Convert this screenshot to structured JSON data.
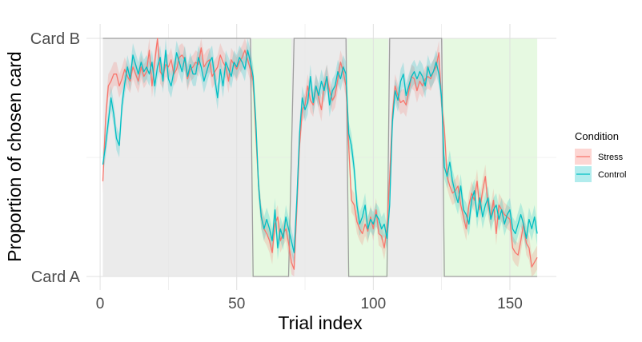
{
  "chart_data": {
    "type": "line",
    "xlabel": "Trial index",
    "ylabel": "Proportion of chosen card",
    "xlim": [
      -5,
      167
    ],
    "ylim": [
      0,
      1
    ],
    "x_ticks": [
      0,
      50,
      100,
      150
    ],
    "y_ticks": [
      {
        "value": 0,
        "label": "Card A"
      },
      {
        "value": 1,
        "label": "Card B"
      }
    ],
    "grid": true,
    "legend": {
      "title": "Condition",
      "position": "right"
    },
    "colors": {
      "stress": "#F8766D",
      "control": "#00BFC4",
      "target_line": "#9e9e9e",
      "phase_b_fill": "#ebebeb",
      "phase_a_fill": "#e6f9e1"
    },
    "target": {
      "description_points": [
        [
          1,
          1
        ],
        [
          55,
          1
        ],
        [
          56,
          0
        ],
        [
          69,
          0
        ],
        [
          71,
          1
        ],
        [
          90,
          1
        ],
        [
          91,
          0
        ],
        [
          105,
          0
        ],
        [
          106,
          1
        ],
        [
          125,
          1
        ],
        [
          126,
          0
        ],
        [
          160,
          0
        ]
      ],
      "phases": [
        {
          "start": 1,
          "end": 55.5,
          "value": 1
        },
        {
          "start": 55.5,
          "end": 70,
          "value": 0
        },
        {
          "start": 70,
          "end": 90.5,
          "value": 1
        },
        {
          "start": 90.5,
          "end": 105.5,
          "value": 0
        },
        {
          "start": 105.5,
          "end": 125.5,
          "value": 1
        },
        {
          "start": 125.5,
          "end": 160,
          "value": 0
        }
      ]
    },
    "series": [
      {
        "name": "Stress",
        "color": "#F8766D",
        "band": 0.05,
        "x_start": 1,
        "values": [
          0.4,
          0.66,
          0.8,
          0.82,
          0.85,
          0.85,
          0.8,
          0.83,
          0.87,
          0.84,
          0.82,
          0.88,
          0.85,
          0.82,
          0.88,
          0.84,
          0.86,
          0.95,
          0.8,
          0.9,
          1.0,
          0.86,
          0.84,
          0.89,
          0.88,
          0.91,
          0.85,
          0.87,
          0.92,
          0.93,
          0.91,
          0.83,
          0.87,
          0.88,
          0.9,
          0.89,
          0.96,
          0.88,
          0.9,
          0.91,
          0.84,
          0.86,
          0.88,
          0.93,
          0.9,
          0.88,
          0.82,
          0.91,
          0.89,
          0.87,
          0.9,
          0.92,
          0.95,
          0.91,
          0.87,
          0.82,
          0.6,
          0.38,
          0.25,
          0.2,
          0.18,
          0.15,
          0.1,
          0.22,
          0.25,
          0.15,
          0.18,
          0.2,
          0.14,
          0.06,
          0.03,
          0.28,
          0.55,
          0.7,
          0.72,
          0.8,
          0.74,
          0.72,
          0.8,
          0.75,
          0.7,
          0.8,
          0.84,
          0.78,
          0.74,
          0.76,
          0.83,
          0.9,
          0.86,
          0.8,
          0.55,
          0.32,
          0.3,
          0.23,
          0.2,
          0.18,
          0.22,
          0.19,
          0.25,
          0.2,
          0.28,
          0.18,
          0.17,
          0.12,
          0.2,
          0.42,
          0.68,
          0.8,
          0.76,
          0.73,
          0.74,
          0.72,
          0.78,
          0.84,
          0.83,
          0.78,
          0.82,
          0.8,
          0.83,
          0.84,
          0.83,
          0.86,
          0.88,
          0.94,
          0.72,
          0.62,
          0.42,
          0.38,
          0.35,
          0.36,
          0.38,
          0.3,
          0.25,
          0.2,
          0.3,
          0.35,
          0.32,
          0.4,
          0.28,
          0.36,
          0.42,
          0.3,
          0.25,
          0.32,
          0.18,
          0.3,
          0.28,
          0.26,
          0.25,
          0.24,
          0.12,
          0.1,
          0.09,
          0.15,
          0.22,
          0.14,
          0.12,
          0.04,
          0.06,
          0.08
        ]
      },
      {
        "name": "Control",
        "color": "#00BFC4",
        "band": 0.05,
        "x_start": 1,
        "values": [
          0.47,
          0.55,
          0.65,
          0.75,
          0.68,
          0.58,
          0.55,
          0.72,
          0.81,
          0.88,
          0.83,
          0.93,
          0.89,
          0.85,
          0.9,
          0.86,
          0.88,
          0.85,
          0.9,
          0.8,
          0.88,
          0.92,
          0.82,
          0.95,
          0.83,
          0.8,
          0.86,
          0.94,
          0.9,
          0.86,
          0.92,
          0.84,
          0.89,
          0.85,
          0.85,
          0.92,
          0.88,
          0.82,
          0.86,
          0.9,
          0.92,
          0.83,
          0.75,
          0.87,
          0.8,
          0.9,
          0.87,
          0.84,
          0.9,
          0.88,
          0.92,
          0.9,
          0.87,
          0.95,
          0.9,
          0.84,
          0.65,
          0.38,
          0.25,
          0.2,
          0.24,
          0.2,
          0.15,
          0.28,
          0.12,
          0.2,
          0.16,
          0.25,
          0.2,
          0.15,
          0.1,
          0.32,
          0.6,
          0.75,
          0.7,
          0.73,
          0.84,
          0.73,
          0.8,
          0.76,
          0.82,
          0.78,
          0.84,
          0.72,
          0.78,
          0.8,
          0.86,
          0.83,
          0.88,
          0.85,
          0.6,
          0.55,
          0.45,
          0.3,
          0.22,
          0.25,
          0.3,
          0.2,
          0.24,
          0.22,
          0.26,
          0.24,
          0.2,
          0.22,
          0.16,
          0.3,
          0.65,
          0.78,
          0.74,
          0.82,
          0.85,
          0.76,
          0.8,
          0.84,
          0.86,
          0.83,
          0.86,
          0.84,
          0.8,
          0.88,
          0.84,
          0.86,
          0.9,
          0.85,
          0.75,
          0.46,
          0.42,
          0.48,
          0.4,
          0.35,
          0.31,
          0.38,
          0.28,
          0.26,
          0.22,
          0.32,
          0.36,
          0.25,
          0.33,
          0.25,
          0.3,
          0.33,
          0.24,
          0.28,
          0.3,
          0.24,
          0.28,
          0.22,
          0.26,
          0.28,
          0.2,
          0.18,
          0.22,
          0.26,
          0.22,
          0.16,
          0.24,
          0.2,
          0.25,
          0.18
        ]
      }
    ]
  }
}
